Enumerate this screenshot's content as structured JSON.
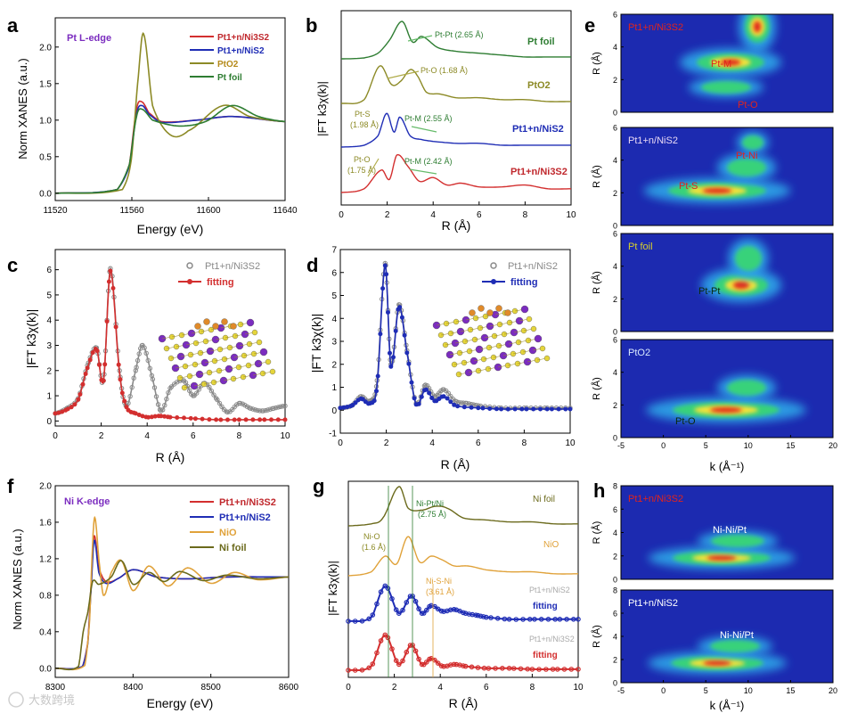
{
  "panels": {
    "a": {
      "letter": "a",
      "edge_label": "Pt L-edge",
      "xlabel": "Energy (eV)",
      "ylabel": "Norm XANES (a.u.)",
      "xticks": [
        "11520",
        "11560",
        "11600",
        "11640"
      ],
      "yticks": [
        "0.0",
        "0.5",
        "1.0",
        "1.5",
        "2.0"
      ],
      "legend": [
        "Pt1+n/Ni3S2",
        "Pt1+n/NiS2",
        "PtO2",
        "Pt foil"
      ]
    },
    "b": {
      "letter": "b",
      "xlabel": "R (Å)",
      "ylabel": "|FT k3χ(k)|",
      "xticks": [
        "0",
        "2",
        "4",
        "6",
        "8",
        "10"
      ],
      "labels": [
        "Pt foil",
        "PtO2",
        "Pt1+n/NiS2",
        "Pt1+n/Ni3S2"
      ],
      "annotations": [
        "Pt-Pt (2.65 Å)",
        "Pt-O (1.68 Å)",
        "Pt-S",
        "(1.98 Å)",
        "Pt-M (2.55 Å)",
        "Pt-O",
        "(1.75 Å)",
        "Pt-M (2.42 Å)"
      ]
    },
    "c": {
      "letter": "c",
      "xlabel": "R (Å)",
      "ylabel": "|FT k3χ(k)|",
      "xticks": [
        "0",
        "2",
        "4",
        "6",
        "8",
        "10"
      ],
      "yticks": [
        "0",
        "1",
        "2",
        "3",
        "4",
        "5",
        "6"
      ],
      "legend": [
        "Pt1+n/Ni3S2",
        "fitting"
      ]
    },
    "d": {
      "letter": "d",
      "xlabel": "R (Å)",
      "ylabel": "|FT k3χ(k)|",
      "xticks": [
        "0",
        "2",
        "4",
        "6",
        "8",
        "10"
      ],
      "yticks": [
        "-1",
        "0",
        "1",
        "2",
        "3",
        "4",
        "5",
        "6",
        "7"
      ],
      "legend": [
        "Pt1+n/NiS2",
        "fitting"
      ]
    },
    "e": {
      "letter": "e",
      "ylabel": "R (Å)",
      "xlabel": "k (Å⁻¹)",
      "xticks": [
        "-5",
        "0",
        "5",
        "10",
        "15",
        "20"
      ],
      "yticks": [
        "0",
        "2",
        "4",
        "6"
      ],
      "maps": [
        {
          "sample": "Pt1+n/Ni3S2",
          "labels": [
            "Pt-M",
            "Pt-O"
          ]
        },
        {
          "sample": "Pt1+n/NiS2",
          "labels": [
            "Pt-Ni",
            "Pt-S"
          ]
        },
        {
          "sample": "Pt foil",
          "labels": [
            "Pt-Pt"
          ]
        },
        {
          "sample": "PtO2",
          "labels": [
            "Pt-O"
          ]
        }
      ]
    },
    "f": {
      "letter": "f",
      "edge_label": "Ni K-edge",
      "xlabel": "Energy (eV)",
      "ylabel": "Norm XANES (a.u.)",
      "xticks": [
        "8300",
        "8400",
        "8500",
        "8600"
      ],
      "yticks": [
        "0.0",
        "0.4",
        "0.8",
        "1.2",
        "1.6",
        "2.0"
      ],
      "legend": [
        "Pt1+n/Ni3S2",
        "Pt1+n/NiS2",
        "NiO",
        "Ni foil"
      ]
    },
    "g": {
      "letter": "g",
      "xlabel": "R (Å)",
      "ylabel": "|FT k3χ(k)|",
      "xticks": [
        "0",
        "2",
        "4",
        "6",
        "8",
        "10"
      ],
      "labels": [
        "Ni foil",
        "NiO",
        "Pt1+n/NiS2",
        "fitting",
        "Pt1+n/Ni3S2",
        "fitting"
      ],
      "annotations": [
        "Ni-Pt/Ni",
        "(2.75 Å)",
        "Ni-O",
        "(1.6 Å)",
        "Ni-S-Ni",
        "(3.61 Å)"
      ]
    },
    "h": {
      "letter": "h",
      "ylabel": "R (Å)",
      "xlabel": "k (Å⁻¹)",
      "xticks": [
        "-5",
        "0",
        "5",
        "10",
        "15",
        "20"
      ],
      "yticks": [
        "0",
        "2",
        "4",
        "6",
        "8"
      ],
      "maps": [
        {
          "sample": "Pt1+n/Ni3S2",
          "labels": [
            "Ni-Ni/Pt"
          ]
        },
        {
          "sample": "Pt1+n/NiS2",
          "labels": [
            "Ni-Ni/Pt"
          ]
        }
      ]
    }
  },
  "watermark": "大数跨境",
  "colors": {
    "red": "#d32f2f",
    "blue": "#1f2db5",
    "olive": "#8c8a26",
    "green": "#2e7d32",
    "orange": "#e0a23a",
    "darkolive": "#6b6a1c",
    "gray": "#8a8a8a",
    "purple": "#8a2be2"
  },
  "chart_data": [
    {
      "type": "line",
      "panel": "a",
      "xlabel": "Energy (eV)",
      "ylabel": "Norm XANES (a.u.)",
      "xlim": [
        11520,
        11650
      ],
      "ylim": [
        -0.1,
        2.4
      ],
      "series": [
        {
          "name": "Pt1+n/Ni3S2",
          "x": [
            11520,
            11555,
            11562,
            11566,
            11569,
            11573,
            11580,
            11600,
            11620,
            11650
          ],
          "y": [
            0,
            0.05,
            0.4,
            1.15,
            1.25,
            1.1,
            0.98,
            1.0,
            1.05,
            0.98
          ]
        },
        {
          "name": "Pt1+n/NiS2",
          "x": [
            11520,
            11555,
            11562,
            11566,
            11569,
            11573,
            11580,
            11600,
            11620,
            11650
          ],
          "y": [
            0,
            0.05,
            0.38,
            1.08,
            1.2,
            1.08,
            0.97,
            1.0,
            1.05,
            0.98
          ]
        },
        {
          "name": "PtO2",
          "x": [
            11520,
            11558,
            11563,
            11567,
            11570,
            11575,
            11585,
            11595,
            11615,
            11630,
            11650
          ],
          "y": [
            0,
            0.05,
            0.45,
            1.6,
            2.18,
            1.2,
            0.8,
            0.85,
            1.2,
            1.05,
            0.98
          ]
        },
        {
          "name": "Pt foil",
          "x": [
            11520,
            11555,
            11562,
            11566,
            11569,
            11575,
            11590,
            11605,
            11620,
            11635,
            11650
          ],
          "y": [
            0,
            0.05,
            0.4,
            1.05,
            1.15,
            1.0,
            0.92,
            0.98,
            1.2,
            1.05,
            0.98
          ]
        }
      ]
    },
    {
      "type": "line",
      "panel": "c",
      "xlabel": "R (Å)",
      "ylabel": "|FT k3χ(k)|",
      "xlim": [
        0,
        10
      ],
      "ylim": [
        -0.2,
        6.8
      ],
      "series": [
        {
          "name": "Pt1+n/Ni3S2",
          "x": [
            0,
            0.5,
            1,
            1.4,
            1.8,
            2.1,
            2.4,
            2.8,
            3.1,
            3.5,
            3.8,
            4.2,
            4.6,
            5,
            5.6,
            6,
            6.5,
            7,
            7.5,
            8,
            8.5,
            9,
            9.5,
            10
          ],
          "y": [
            0.3,
            0.5,
            0.9,
            2.2,
            2.9,
            1.6,
            6.05,
            2.0,
            0.6,
            2.0,
            3.0,
            1.8,
            0.4,
            1.3,
            1.6,
            1.0,
            1.5,
            0.9,
            0.35,
            0.7,
            0.5,
            0.4,
            0.5,
            0.6
          ]
        },
        {
          "name": "fitting",
          "x": [
            0,
            0.5,
            1,
            1.4,
            1.8,
            2.1,
            2.4,
            2.8,
            3.1,
            3.5,
            4,
            4.5,
            5,
            6,
            7,
            8,
            9,
            10
          ],
          "y": [
            0.3,
            0.45,
            0.85,
            2.1,
            2.85,
            1.6,
            5.95,
            1.9,
            0.55,
            0.3,
            0.15,
            0.2,
            0.15,
            0.1,
            0.05,
            0.05,
            0.05,
            0.05
          ]
        }
      ]
    },
    {
      "type": "line",
      "panel": "d",
      "xlabel": "R (Å)",
      "ylabel": "|FT k3χ(k)|",
      "xlim": [
        0,
        10
      ],
      "ylim": [
        -1,
        7
      ],
      "series": [
        {
          "name": "Pt1+n/NiS2",
          "x": [
            0,
            0.5,
            0.9,
            1.3,
            1.6,
            1.95,
            2.2,
            2.55,
            2.9,
            3.3,
            3.7,
            4.1,
            4.5,
            5,
            5.5,
            6,
            7,
            8,
            9,
            10
          ],
          "y": [
            0.1,
            0.2,
            0.6,
            0.4,
            1.3,
            6.4,
            2.0,
            4.6,
            2.6,
            0.3,
            1.1,
            0.6,
            0.9,
            0.4,
            0.3,
            0.2,
            0.1,
            0.1,
            0.1,
            0.1
          ]
        },
        {
          "name": "fitting",
          "x": [
            0,
            0.5,
            0.9,
            1.3,
            1.6,
            1.95,
            2.2,
            2.55,
            2.9,
            3.3,
            3.7,
            4.1,
            4.5,
            5,
            6,
            7,
            8,
            9,
            10
          ],
          "y": [
            0.1,
            0.2,
            0.5,
            0.3,
            1.1,
            6.3,
            1.9,
            4.5,
            2.5,
            0.25,
            0.9,
            0.4,
            0.6,
            0.2,
            0.1,
            0.05,
            0.05,
            0.05,
            0.05
          ]
        }
      ]
    },
    {
      "type": "line",
      "panel": "f",
      "xlabel": "Energy (eV)",
      "ylabel": "Norm XANES (a.u.)",
      "xlim": [
        8300,
        8600
      ],
      "ylim": [
        -0.1,
        2.0
      ],
      "series": [
        {
          "name": "Pt1+n/Ni3S2",
          "x": [
            8300,
            8335,
            8342,
            8346,
            8350,
            8356,
            8365,
            8380,
            8400,
            8430,
            8470,
            8520,
            8600
          ],
          "y": [
            0,
            0.02,
            0.3,
            0.9,
            1.45,
            1.1,
            0.95,
            0.98,
            1.08,
            1.0,
            0.98,
            1.0,
            1.0
          ]
        },
        {
          "name": "Pt1+n/NiS2",
          "x": [
            8300,
            8335,
            8342,
            8346,
            8350,
            8356,
            8365,
            8380,
            8400,
            8430,
            8470,
            8520,
            8600
          ],
          "y": [
            0,
            0.02,
            0.28,
            0.85,
            1.4,
            1.05,
            0.93,
            0.98,
            1.08,
            1.0,
            0.98,
            1.0,
            1.0
          ]
        },
        {
          "name": "NiO",
          "x": [
            8300,
            8338,
            8344,
            8348,
            8351,
            8356,
            8362,
            8372,
            8385,
            8400,
            8420,
            8445,
            8470,
            8500,
            8530,
            8560,
            8600
          ],
          "y": [
            0,
            0.03,
            0.5,
            1.35,
            1.65,
            1.2,
            0.8,
            1.05,
            1.18,
            0.85,
            1.12,
            0.9,
            1.1,
            0.93,
            1.05,
            0.97,
            1.0
          ]
        },
        {
          "name": "Ni foil",
          "x": [
            8300,
            8330,
            8336,
            8342,
            8348,
            8356,
            8372,
            8385,
            8400,
            8420,
            8440,
            8460,
            8490,
            8520,
            8560,
            8600
          ],
          "y": [
            0,
            0.02,
            0.4,
            0.62,
            0.95,
            0.92,
            1.0,
            1.18,
            0.92,
            1.05,
            0.95,
            1.06,
            0.96,
            1.02,
            0.98,
            1.0
          ]
        }
      ]
    },
    {
      "type": "line",
      "panel": "b",
      "xlabel": "R (Å)",
      "ylabel": "|FT k3χ(k)|",
      "xlim": [
        0,
        10
      ],
      "series": [
        {
          "name": "Pt foil",
          "x": [
            0,
            1,
            1.6,
            2.1,
            2.65,
            3.1,
            3.5,
            4.2,
            5,
            6,
            7,
            8,
            9,
            10
          ],
          "y": [
            0,
            0.05,
            0.3,
            1.0,
            2.0,
            0.9,
            1.2,
            0.6,
            0.4,
            0.3,
            0.2,
            0.1,
            0.1,
            0.1
          ]
        },
        {
          "name": "PtO2",
          "x": [
            0,
            1,
            1.68,
            2.2,
            2.6,
            3.0,
            3.3,
            3.7,
            4.3,
            5,
            6,
            7,
            8,
            9,
            10
          ],
          "y": [
            0,
            0.2,
            2.0,
            1.0,
            1.2,
            1.8,
            1.5,
            0.6,
            0.5,
            0.3,
            0.3,
            0.2,
            0.2,
            0.1,
            0.1
          ]
        },
        {
          "name": "Pt1+n/NiS2",
          "x": [
            0,
            1,
            1.6,
            1.98,
            2.3,
            2.55,
            3.0,
            3.5,
            4,
            5,
            6,
            7,
            8,
            9,
            10
          ],
          "y": [
            0,
            0.1,
            0.6,
            1.8,
            0.8,
            1.6,
            0.6,
            0.4,
            0.3,
            0.2,
            0.2,
            0.1,
            0.1,
            0.1,
            0.1
          ]
        },
        {
          "name": "Pt1+n/Ni3S2",
          "x": [
            0,
            1,
            1.75,
            2.1,
            2.42,
            2.9,
            3.4,
            4.0,
            4.6,
            5.2,
            6,
            7,
            8,
            9,
            10
          ],
          "y": [
            0,
            0.2,
            1.2,
            0.7,
            2.0,
            1.4,
            0.6,
            0.8,
            0.4,
            0.5,
            0.3,
            0.3,
            0.4,
            0.2,
            0.2
          ]
        }
      ]
    },
    {
      "type": "line",
      "panel": "g",
      "xlabel": "R (Å)",
      "ylabel": "|FT k3χ(k)|",
      "xlim": [
        0,
        10
      ],
      "series": [
        {
          "name": "Ni foil",
          "x": [
            0,
            1,
            1.5,
            2.2,
            2.6,
            3.2,
            3.8,
            4.3,
            5,
            6,
            7,
            8,
            9,
            10
          ],
          "y": [
            0,
            0.1,
            0.4,
            2.0,
            0.9,
            0.8,
            1.0,
            0.9,
            0.4,
            0.3,
            0.2,
            0.2,
            0.1,
            0.1
          ]
        },
        {
          "name": "NiO",
          "x": [
            0,
            1,
            1.6,
            2.1,
            2.6,
            3.1,
            3.6,
            4.1,
            4.6,
            5.2,
            6,
            7,
            8,
            9,
            10
          ],
          "y": [
            0,
            0.2,
            1.0,
            0.6,
            2.0,
            0.7,
            1.0,
            0.8,
            0.5,
            0.5,
            0.3,
            0.2,
            0.2,
            0.1,
            0.1
          ]
        },
        {
          "name": "Pt1+n/NiS2",
          "x": [
            0,
            1,
            1.6,
            2.2,
            2.75,
            3.2,
            3.61,
            4.1,
            4.6,
            5.1,
            5.6,
            6,
            7,
            8,
            9,
            10
          ],
          "y": [
            0,
            0.2,
            1.8,
            0.4,
            1.3,
            0.4,
            0.8,
            0.5,
            0.6,
            0.4,
            0.3,
            0.2,
            0.1,
            0.1,
            0.1,
            0.1
          ]
        },
        {
          "name": "Pt1+n/Ni3S2",
          "x": [
            0,
            1,
            1.6,
            2.2,
            2.75,
            3.2,
            3.61,
            4.1,
            4.6,
            5.1,
            6,
            7,
            8,
            9,
            10
          ],
          "y": [
            0,
            0.2,
            1.8,
            0.3,
            1.3,
            0.3,
            0.6,
            0.2,
            0.3,
            0.2,
            0.1,
            0.1,
            0.05,
            0.05,
            0.05
          ]
        }
      ]
    }
  ]
}
